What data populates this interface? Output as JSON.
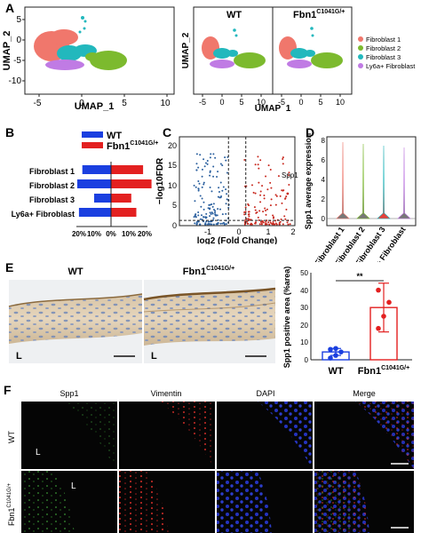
{
  "colors": {
    "fibroblast_1": "#f0776c",
    "fibroblast_2": "#7cba2e",
    "fibroblast_3": "#22b8bd",
    "ly6a_fibroblast": "#c07be4",
    "wt": "#1a3fe0",
    "mutant": "#e32020",
    "up": "#c8281e",
    "down": "#2a5f9e"
  },
  "panel_labels": [
    "A",
    "B",
    "C",
    "D",
    "E",
    "F"
  ],
  "panel_a": {
    "group_labels": [
      "WT",
      "Fbn1"
    ],
    "group_superscript": "C1041G/+",
    "chart_data": [
      {
        "type": "scatter",
        "xlabel": "UMAP_1",
        "ylabel": "UMAP_2",
        "x_ticks": [
          "-5",
          "0",
          "5",
          "10"
        ],
        "y_ticks": [
          "5",
          "0",
          "-5",
          "-10"
        ]
      },
      {
        "type": "scatter",
        "xlabel": "UMAP_1",
        "ylabel": "UMAP_2",
        "x_ticks": [
          "-5",
          "0",
          "5",
          "10"
        ],
        "y_ticks": []
      }
    ],
    "legend": [
      "Fibroblast 1",
      "Fibroblast 2",
      "Fibroblast 3",
      "Ly6a+ Fibroblast"
    ]
  },
  "panel_b": {
    "legend": [
      "WT",
      "Fbn1"
    ],
    "legend_superscript": "C1041G/+",
    "chart_data": {
      "type": "bar",
      "categories": [
        "Fibroblast 1",
        "Fibroblast 2",
        "Fibroblast 3",
        "Ly6a+ Fibroblast"
      ],
      "series": [
        {
          "name": "WT",
          "values": [
            17,
            20,
            10,
            19
          ]
        },
        {
          "name": "Fbn1C1041G/+",
          "values": [
            19,
            24,
            12,
            15
          ]
        }
      ],
      "x_ticks": [
        "20%",
        "10%",
        "0%",
        "10%",
        "20%"
      ]
    }
  },
  "panel_c": {
    "chart_data": {
      "type": "scatter",
      "xlabel": "log2 (Fold Change)",
      "ylabel": "−log10FDR",
      "x_ticks": [
        "-1",
        "0",
        "1",
        "2"
      ],
      "y_ticks": [
        "0",
        "5",
        "10",
        "15",
        "20"
      ],
      "annotation": "Spp1",
      "annotation_point": [
        1.75,
        8
      ]
    }
  },
  "panel_d": {
    "chart_data": {
      "type": "violin",
      "ylabel": "Spp1 average expression",
      "categories": [
        "Fibroblast 1",
        "Fibroblast 2",
        "Fibroblast 3",
        "Ly6a+ Fibroblast"
      ],
      "y_ticks": [
        "0",
        "2",
        "4",
        "6",
        "8"
      ]
    }
  },
  "panel_e": {
    "image_titles": [
      "WT",
      "Fbn1"
    ],
    "image_title_superscript": "C1041G/+",
    "image_marker": "L",
    "chart_data": {
      "type": "bar",
      "categories": [
        "WT",
        "Fbn1"
      ],
      "category_superscript": "C1041G/+",
      "values": [
        4.5,
        30
      ],
      "errors": [
        2,
        14
      ],
      "points": [
        [
          1,
          2.5,
          4.5,
          6,
          6.5
        ],
        [
          18,
          25,
          33,
          40
        ]
      ],
      "ylabel": "Spp1 positive area (%area)",
      "y_ticks": [
        "0",
        "10",
        "20",
        "30",
        "40",
        "50"
      ],
      "ylim": [
        0,
        50
      ],
      "significance": "**"
    }
  },
  "panel_f": {
    "column_labels": [
      "Spp1",
      "Vimentin",
      "DAPI",
      "Merge"
    ],
    "row_labels": [
      "WT",
      "Fbn1"
    ],
    "row_label_superscript": "C1041G/+",
    "image_marker": "L"
  }
}
